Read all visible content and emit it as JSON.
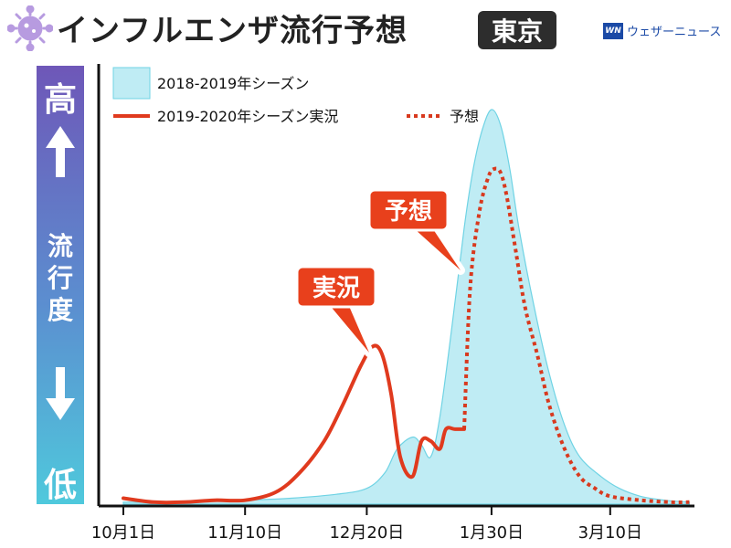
{
  "header": {
    "title": "インフルエンザ流行予想",
    "region": "東京",
    "brand": "ウェザーニュース",
    "brand_logo": "WN"
  },
  "level_bar": {
    "high": "高",
    "low": "低",
    "label": "流\n行\n度"
  },
  "callouts": {
    "actual": "実況",
    "forecast": "予想"
  },
  "colors": {
    "previous_fill": "#bfecf4",
    "previous_edge": "#6fd3e4",
    "actual": "#e03a1e",
    "forecast": "#d8391e"
  },
  "chart_data": {
    "type": "area",
    "title": "インフルエンザ流行予想",
    "xlabel": "",
    "ylabel": "",
    "x_ticks": [
      "10月1日",
      "11月10日",
      "12月20日",
      "1月30日",
      "3月10日"
    ],
    "x_unit": "days since Oct 1",
    "x_tick_values": [
      0,
      40,
      80,
      121,
      160
    ],
    "ylim": [
      0,
      100
    ],
    "legend_position": "top-left",
    "series": [
      {
        "name": "2018-2019年シーズン",
        "style": "area",
        "x": [
          0,
          20,
          40,
          55,
          70,
          80,
          86,
          90,
          95,
          98,
          101,
          104,
          108,
          112,
          115,
          118,
          121,
          124,
          127,
          130,
          135,
          140,
          145,
          150,
          157,
          163,
          170,
          178,
          186
        ],
        "y": [
          0.5,
          0.5,
          1,
          1.5,
          2.5,
          4,
          8,
          14,
          17,
          15,
          12,
          22,
          45,
          70,
          85,
          95,
          100,
          96,
          85,
          70,
          50,
          33,
          20,
          12,
          7,
          4,
          2,
          1,
          0.5
        ]
      },
      {
        "name": "2019-2020年シーズン実況",
        "style": "line",
        "x": [
          0,
          10,
          20,
          30,
          40,
          50,
          58,
          66,
          72,
          78,
          82,
          85,
          88,
          91,
          95,
          98,
          101,
          104,
          106,
          109,
          112
        ],
        "y": [
          1.5,
          0.5,
          0.5,
          1,
          1,
          3,
          8,
          16,
          25,
          35,
          40,
          38,
          28,
          12,
          7,
          16,
          16,
          14,
          19,
          19,
          19
        ]
      },
      {
        "name": "予想",
        "style": "dotted",
        "x": [
          112,
          114,
          117,
          120,
          122,
          124,
          126,
          129,
          132,
          136,
          140,
          145,
          150,
          155,
          160,
          170,
          180,
          186
        ],
        "y": [
          19,
          55,
          74,
          83,
          85,
          84,
          78,
          64,
          50,
          38,
          25,
          14,
          7,
          4,
          2,
          1,
          0.5,
          0.5
        ]
      }
    ]
  }
}
